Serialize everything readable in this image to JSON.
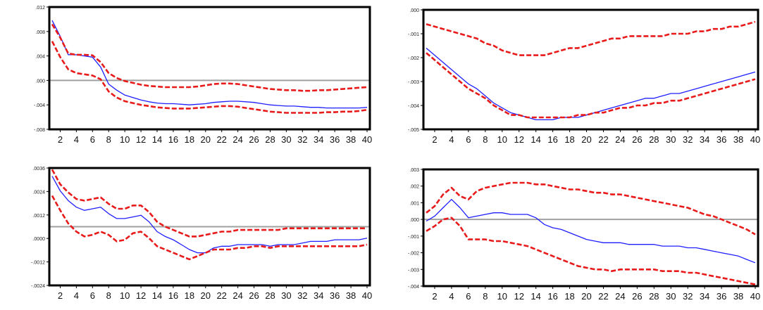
{
  "x_tick_labels": [
    "2",
    "4",
    "6",
    "8",
    "10",
    "12",
    "14",
    "16",
    "18",
    "20",
    "22",
    "24",
    "26",
    "28",
    "30",
    "32",
    "34",
    "36",
    "38",
    "40"
  ],
  "colors": {
    "response": "#1f1fff",
    "bands": "#e81a1a",
    "zero_line": "#a0a0a0",
    "frame": "#000000"
  },
  "chart_data": [
    {
      "type": "line",
      "ylim": [
        -0.008,
        0.012
      ],
      "y_tick_labels": [
        ".012",
        ".008",
        ".004",
        ".000",
        "-.004",
        "-.008"
      ],
      "zero": 0.0,
      "x": [
        1,
        2,
        3,
        4,
        5,
        6,
        7,
        8,
        9,
        10,
        11,
        12,
        13,
        14,
        15,
        16,
        17,
        18,
        19,
        20,
        21,
        22,
        23,
        24,
        25,
        26,
        27,
        28,
        29,
        30,
        31,
        32,
        33,
        34,
        35,
        36,
        37,
        38,
        39,
        40
      ],
      "series": [
        {
          "role": "response",
          "values": [
            0.0098,
            0.0072,
            0.0042,
            0.0042,
            0.004,
            0.0038,
            0.0022,
            -0.0006,
            -0.0016,
            -0.0024,
            -0.0028,
            -0.0032,
            -0.0035,
            -0.0037,
            -0.0038,
            -0.0038,
            -0.0039,
            -0.004,
            -0.0039,
            -0.0038,
            -0.0036,
            -0.0035,
            -0.0034,
            -0.0034,
            -0.0035,
            -0.0036,
            -0.0038,
            -0.004,
            -0.0041,
            -0.0042,
            -0.0042,
            -0.0043,
            -0.0044,
            -0.0044,
            -0.0045,
            -0.0045,
            -0.0045,
            -0.0045,
            -0.0045,
            -0.0044
          ]
        },
        {
          "role": "upper",
          "values": [
            0.0092,
            0.007,
            0.0044,
            0.0042,
            0.0042,
            0.0041,
            0.003,
            0.0012,
            0.0004,
            -0.0001,
            -0.0004,
            -0.0007,
            -0.0009,
            -0.001,
            -0.0011,
            -0.0011,
            -0.0011,
            -0.0011,
            -0.001,
            -0.0008,
            -0.0006,
            -0.0005,
            -0.0005,
            -0.0006,
            -0.0008,
            -0.001,
            -0.0012,
            -0.0014,
            -0.0015,
            -0.0016,
            -0.0016,
            -0.0017,
            -0.0017,
            -0.0016,
            -0.0016,
            -0.0015,
            -0.0014,
            -0.0013,
            -0.0012,
            -0.0011
          ]
        },
        {
          "role": "lower",
          "values": [
            0.0064,
            0.0038,
            0.0018,
            0.0012,
            0.001,
            0.0008,
            0.0002,
            -0.0018,
            -0.0028,
            -0.0034,
            -0.0037,
            -0.004,
            -0.0042,
            -0.0044,
            -0.0045,
            -0.0046,
            -0.0046,
            -0.0046,
            -0.0045,
            -0.0044,
            -0.0043,
            -0.0042,
            -0.0042,
            -0.0043,
            -0.0045,
            -0.0047,
            -0.0049,
            -0.0051,
            -0.0052,
            -0.0053,
            -0.0053,
            -0.0053,
            -0.0053,
            -0.0053,
            -0.0052,
            -0.0052,
            -0.0051,
            -0.0051,
            -0.005,
            -0.0048
          ]
        }
      ]
    },
    {
      "type": "line",
      "ylim": [
        -0.005,
        0.0
      ],
      "y_tick_labels": [
        ".000",
        "-.001",
        "-.002",
        "-.003",
        "-.004",
        "-.005"
      ],
      "zero": 0.0,
      "x": [
        1,
        2,
        3,
        4,
        5,
        6,
        7,
        8,
        9,
        10,
        11,
        12,
        13,
        14,
        15,
        16,
        17,
        18,
        19,
        20,
        21,
        22,
        23,
        24,
        25,
        26,
        27,
        28,
        29,
        30,
        31,
        32,
        33,
        34,
        35,
        36,
        37,
        38,
        39,
        40
      ],
      "series": [
        {
          "role": "response",
          "values": [
            -0.0016,
            -0.0019,
            -0.0022,
            -0.0025,
            -0.0028,
            -0.0031,
            -0.0033,
            -0.0036,
            -0.0039,
            -0.0041,
            -0.0043,
            -0.0044,
            -0.0045,
            -0.0046,
            -0.0046,
            -0.0046,
            -0.0045,
            -0.0045,
            -0.0045,
            -0.0044,
            -0.0043,
            -0.0042,
            -0.0041,
            -0.004,
            -0.0039,
            -0.0038,
            -0.0037,
            -0.0037,
            -0.0036,
            -0.0035,
            -0.0035,
            -0.0034,
            -0.0033,
            -0.0032,
            -0.0031,
            -0.003,
            -0.0029,
            -0.0028,
            -0.0027,
            -0.0026
          ]
        },
        {
          "role": "upper",
          "values": [
            -0.0006,
            -0.0007,
            -0.0008,
            -0.0009,
            -0.001,
            -0.0011,
            -0.0012,
            -0.0014,
            -0.0015,
            -0.0017,
            -0.0018,
            -0.0019,
            -0.0019,
            -0.0019,
            -0.0019,
            -0.0018,
            -0.0017,
            -0.0016,
            -0.0016,
            -0.0015,
            -0.0014,
            -0.0013,
            -0.0012,
            -0.0012,
            -0.0011,
            -0.0011,
            -0.0011,
            -0.0011,
            -0.0011,
            -0.001,
            -0.001,
            -0.001,
            -0.0009,
            -0.0009,
            -0.0008,
            -0.0008,
            -0.0007,
            -0.0007,
            -0.0006,
            -0.0005
          ]
        },
        {
          "role": "lower",
          "values": [
            -0.0018,
            -0.0021,
            -0.0024,
            -0.0027,
            -0.003,
            -0.0033,
            -0.0035,
            -0.0037,
            -0.004,
            -0.0042,
            -0.0044,
            -0.0044,
            -0.0045,
            -0.0045,
            -0.0045,
            -0.0045,
            -0.0045,
            -0.0045,
            -0.0044,
            -0.0044,
            -0.0043,
            -0.0043,
            -0.0042,
            -0.0041,
            -0.0041,
            -0.004,
            -0.004,
            -0.0039,
            -0.0039,
            -0.0038,
            -0.0038,
            -0.0037,
            -0.0036,
            -0.0035,
            -0.0034,
            -0.0033,
            -0.0032,
            -0.0031,
            -0.003,
            -0.0029
          ]
        }
      ]
    },
    {
      "type": "line",
      "ylim": [
        -0.0036,
        0.0036
      ],
      "y_tick_labels": [
        ".0036",
        ".0024",
        ".0012",
        ".0000",
        "-.0012",
        "-.0024"
      ],
      "zero": 0.0,
      "x": [
        1,
        2,
        3,
        4,
        5,
        6,
        7,
        8,
        9,
        10,
        11,
        12,
        13,
        14,
        15,
        16,
        17,
        18,
        19,
        20,
        21,
        22,
        23,
        24,
        25,
        26,
        27,
        28,
        29,
        30,
        31,
        32,
        33,
        34,
        35,
        36,
        37,
        38,
        39,
        40
      ],
      "series": [
        {
          "role": "response",
          "values": [
            0.0031,
            0.0022,
            0.0016,
            0.0012,
            0.001,
            0.0011,
            0.0012,
            0.0008,
            0.0005,
            0.0005,
            0.0006,
            0.0007,
            0.0003,
            -0.0003,
            -0.0006,
            -0.0008,
            -0.0011,
            -0.0014,
            -0.0016,
            -0.0016,
            -0.0013,
            -0.0012,
            -0.0012,
            -0.0011,
            -0.0011,
            -0.0011,
            -0.0011,
            -0.0012,
            -0.0011,
            -0.0011,
            -0.0011,
            -0.001,
            -0.0009,
            -0.0009,
            -0.0009,
            -0.0008,
            -0.0008,
            -0.0008,
            -0.0008,
            -0.0007
          ]
        },
        {
          "role": "upper",
          "values": [
            0.0035,
            0.0026,
            0.0021,
            0.0017,
            0.0016,
            0.0017,
            0.0018,
            0.0014,
            0.0011,
            0.0011,
            0.0013,
            0.0013,
            0.0009,
            0.0003,
            0.0,
            -0.0002,
            -0.0004,
            -0.0006,
            -0.0006,
            -0.0005,
            -0.0004,
            -0.0003,
            -0.0003,
            -0.0002,
            -0.0002,
            -0.0002,
            -0.0002,
            -0.0002,
            -0.0002,
            -0.0001,
            -0.0001,
            -0.0001,
            -0.0001,
            -0.0001,
            -0.0001,
            -0.0001,
            -0.0001,
            -0.0001,
            -0.0001,
            -0.0001
          ]
        },
        {
          "role": "lower",
          "values": [
            0.0019,
            0.001,
            0.0002,
            -0.0003,
            -0.0006,
            -0.0005,
            -0.0003,
            -0.0005,
            -0.0009,
            -0.0008,
            -0.0004,
            -0.0003,
            -0.0007,
            -0.0012,
            -0.0014,
            -0.0016,
            -0.0018,
            -0.002,
            -0.0018,
            -0.0016,
            -0.0014,
            -0.0014,
            -0.0014,
            -0.0013,
            -0.0013,
            -0.0012,
            -0.0012,
            -0.0013,
            -0.0012,
            -0.0012,
            -0.0012,
            -0.0012,
            -0.0012,
            -0.0012,
            -0.0012,
            -0.0012,
            -0.0012,
            -0.0012,
            -0.0012,
            -0.0011
          ]
        }
      ]
    },
    {
      "type": "line",
      "ylim": [
        -0.004,
        0.003
      ],
      "y_tick_labels": [
        ".003",
        ".002",
        ".001",
        ".000",
        "-.001",
        "-.002",
        "-.003",
        "-.004"
      ],
      "zero": 0.0,
      "x": [
        1,
        2,
        3,
        4,
        5,
        6,
        7,
        8,
        9,
        10,
        11,
        12,
        13,
        14,
        15,
        16,
        17,
        18,
        19,
        20,
        21,
        22,
        23,
        24,
        25,
        26,
        27,
        28,
        29,
        30,
        31,
        32,
        33,
        34,
        35,
        36,
        37,
        38,
        39,
        40
      ],
      "series": [
        {
          "role": "response",
          "values": [
            -0.0001,
            0.0002,
            0.0007,
            0.0012,
            0.0007,
            0.0001,
            0.0002,
            0.0003,
            0.0004,
            0.0004,
            0.0003,
            0.0003,
            0.0003,
            0.0001,
            -0.0003,
            -0.0005,
            -0.0006,
            -0.0008,
            -0.001,
            -0.0012,
            -0.0013,
            -0.0014,
            -0.0014,
            -0.0014,
            -0.0015,
            -0.0015,
            -0.0015,
            -0.0015,
            -0.0016,
            -0.0016,
            -0.0016,
            -0.0017,
            -0.0017,
            -0.0018,
            -0.0019,
            -0.002,
            -0.0021,
            -0.0022,
            -0.0024,
            -0.0026
          ]
        },
        {
          "role": "upper",
          "values": [
            0.0004,
            0.0008,
            0.0015,
            0.0019,
            0.0014,
            0.0012,
            0.0017,
            0.0019,
            0.002,
            0.0021,
            0.0022,
            0.0022,
            0.0022,
            0.0021,
            0.0021,
            0.002,
            0.0019,
            0.0018,
            0.0018,
            0.0017,
            0.0016,
            0.0016,
            0.0015,
            0.0015,
            0.0014,
            0.0013,
            0.0012,
            0.0011,
            0.001,
            0.0009,
            0.0008,
            0.0007,
            0.0005,
            0.0003,
            0.0002,
            0.0,
            -0.0002,
            -0.0004,
            -0.0006,
            -0.0009
          ]
        },
        {
          "role": "lower",
          "values": [
            -0.0007,
            -0.0004,
            0.0,
            0.0001,
            -0.0004,
            -0.0012,
            -0.0012,
            -0.0012,
            -0.0013,
            -0.0013,
            -0.0014,
            -0.0015,
            -0.0016,
            -0.0018,
            -0.002,
            -0.0022,
            -0.0024,
            -0.0026,
            -0.0028,
            -0.0029,
            -0.003,
            -0.003,
            -0.0031,
            -0.003,
            -0.003,
            -0.003,
            -0.003,
            -0.003,
            -0.0031,
            -0.0031,
            -0.0031,
            -0.0032,
            -0.0032,
            -0.0033,
            -0.0034,
            -0.0035,
            -0.0036,
            -0.0037,
            -0.0038,
            -0.0039
          ]
        }
      ]
    }
  ]
}
